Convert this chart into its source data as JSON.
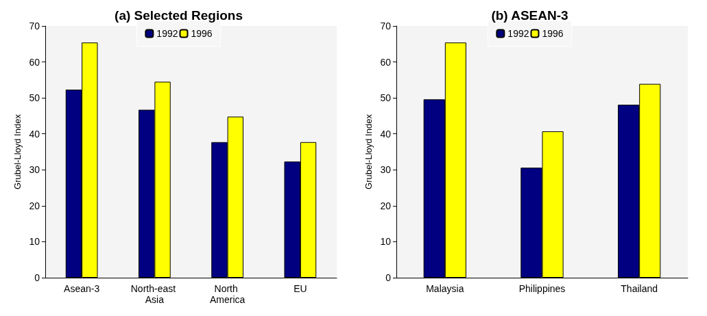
{
  "chart_data": [
    {
      "type": "bar",
      "title": "(a) Selected Regions",
      "ylabel": "Grubel-Lloyd Index",
      "categories": [
        "Asean-3",
        "North-east Asia",
        "North America",
        "EU"
      ],
      "series": [
        {
          "name": "1992",
          "color": "#000080",
          "values": [
            52.3,
            46.7,
            37.7,
            32.3
          ]
        },
        {
          "name": "1996",
          "color": "#ffff00",
          "values": [
            65.4,
            54.5,
            44.8,
            37.7
          ]
        }
      ],
      "ylim": [
        0,
        70
      ],
      "yticks": [
        0,
        10,
        20,
        30,
        40,
        50,
        60,
        70
      ],
      "grid": false,
      "legend": "top"
    },
    {
      "type": "bar",
      "title": "(b) ASEAN-3",
      "ylabel": "Grubel-Lloyd Index",
      "categories": [
        "Malaysia",
        "Philippines",
        "Thailand"
      ],
      "series": [
        {
          "name": "1992",
          "color": "#000080",
          "values": [
            49.6,
            30.6,
            48.1
          ]
        },
        {
          "name": "1996",
          "color": "#ffff00",
          "values": [
            65.4,
            40.7,
            53.9
          ]
        }
      ],
      "ylim": [
        0,
        70
      ],
      "yticks": [
        0,
        10,
        20,
        30,
        40,
        50,
        60,
        70
      ],
      "grid": false,
      "legend": "top"
    }
  ]
}
